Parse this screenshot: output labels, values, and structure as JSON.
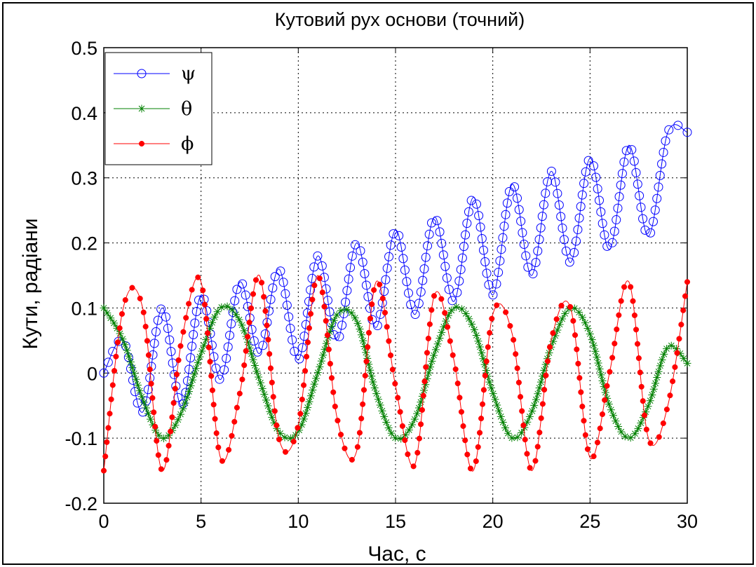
{
  "chart_data": {
    "type": "line",
    "title": "Кутовий рух основи (точний)",
    "xlabel": "Час, с",
    "ylabel": "Кути, радіани",
    "xlim": [
      0,
      30
    ],
    "ylim": [
      -0.2,
      0.5
    ],
    "xticks": [
      0,
      5,
      10,
      15,
      20,
      25,
      30
    ],
    "xtick_labels": [
      "0",
      "5",
      "10",
      "15",
      "20",
      "25",
      "30"
    ],
    "yticks": [
      -0.2,
      -0.1,
      0,
      0.1,
      0.2,
      0.3,
      0.4,
      0.5
    ],
    "ytick_labels": [
      "-0.2",
      "-0.1",
      "0",
      "0.1",
      "0.2",
      "0.3",
      "0.4",
      "0.5"
    ],
    "grid": true,
    "legend_position": "top-left",
    "x": [
      0,
      1,
      2,
      3,
      4,
      5,
      6,
      7,
      8,
      9,
      10,
      11,
      12,
      13,
      14,
      15,
      16,
      17,
      18,
      19,
      20,
      21,
      22,
      23,
      24,
      25,
      26,
      27,
      28,
      29,
      30
    ],
    "series": [
      {
        "name": "ψ",
        "color": "#0000ff",
        "marker": "circle",
        "values": [
          0.0,
          0.05,
          -0.06,
          0.1,
          -0.05,
          0.12,
          -0.01,
          0.14,
          0.03,
          0.16,
          0.02,
          0.18,
          0.05,
          0.2,
          0.07,
          0.22,
          0.09,
          0.24,
          0.11,
          0.27,
          0.12,
          0.29,
          0.15,
          0.31,
          0.17,
          0.33,
          0.19,
          0.35,
          0.21,
          0.37,
          0.37
        ]
      },
      {
        "name": "θ",
        "color": "#008000",
        "marker": "star",
        "values": [
          0.1,
          0.05,
          -0.04,
          -0.1,
          -0.06,
          0.03,
          0.1,
          0.08,
          -0.01,
          -0.09,
          -0.09,
          0.0,
          0.09,
          0.08,
          -0.03,
          -0.1,
          -0.07,
          0.03,
          0.1,
          0.07,
          -0.03,
          -0.1,
          -0.06,
          0.04,
          0.1,
          0.06,
          -0.05,
          -0.1,
          -0.05,
          0.04,
          0.015
        ]
      },
      {
        "name": "ϕ",
        "color": "#ff0000",
        "marker": "dot",
        "values": [
          -0.15,
          0.1,
          0.1,
          -0.15,
          0.05,
          0.14,
          -0.13,
          -0.03,
          0.15,
          -0.1,
          -0.08,
          0.15,
          -0.07,
          -0.12,
          0.14,
          -0.02,
          -0.14,
          0.12,
          0.02,
          -0.15,
          0.09,
          0.06,
          -0.15,
          0.05,
          0.1,
          -0.13,
          0.0,
          0.14,
          -0.1,
          -0.05,
          0.14
        ]
      }
    ]
  }
}
